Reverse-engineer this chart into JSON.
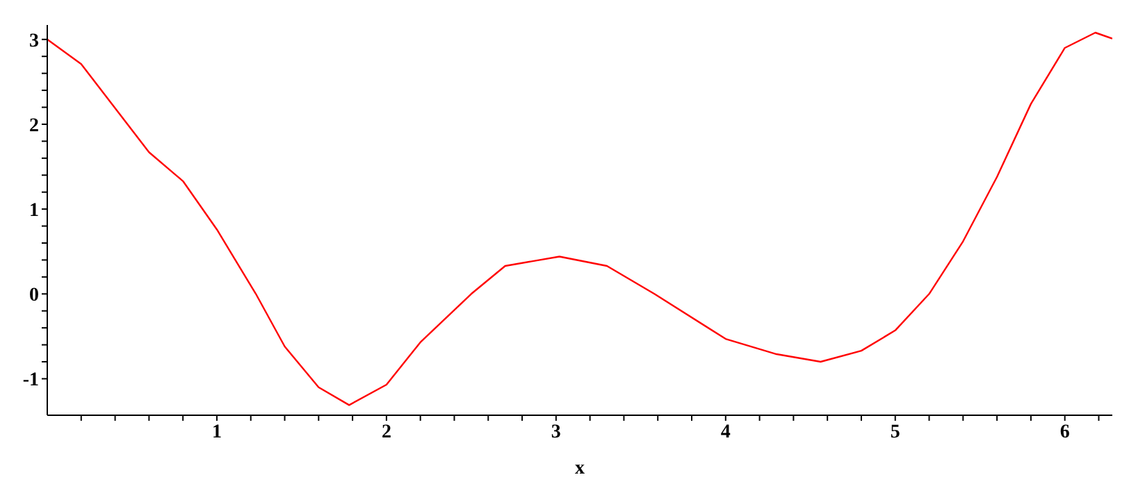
{
  "chart_data": {
    "type": "line",
    "xlabel": "x",
    "x": [
      0,
      0.2,
      0.4,
      0.6,
      0.8,
      1.0,
      1.1,
      1.23,
      1.4,
      1.6,
      1.78,
      2.0,
      2.2,
      2.5,
      2.7,
      3.02,
      3.3,
      3.58,
      4.0,
      4.3,
      4.56,
      4.8,
      5.0,
      5.2,
      5.4,
      5.6,
      5.8,
      6.0,
      6.18,
      6.28
    ],
    "series": [
      {
        "color": "#ff0000",
        "values": [
          3.0,
          2.71,
          2.19,
          1.67,
          1.33,
          0.76,
          0.43,
          0,
          -0.62,
          -1.1,
          -1.31,
          -1.07,
          -0.57,
          0,
          0.33,
          0.44,
          0.33,
          0,
          -0.53,
          -0.71,
          -0.8,
          -0.67,
          -0.43,
          0,
          0.62,
          1.38,
          2.24,
          2.9,
          3.08,
          3.01
        ]
      }
    ],
    "xlim": [
      0,
      6.28
    ],
    "ylim": [
      -1.43,
      3.17
    ],
    "xticks": [
      {
        "value": 0.2,
        "label": null
      },
      {
        "value": 0.4,
        "label": null
      },
      {
        "value": 0.6,
        "label": null
      },
      {
        "value": 0.8,
        "label": null
      },
      1,
      {
        "value": 1.2,
        "label": null
      },
      {
        "value": 1.4,
        "label": null
      },
      {
        "value": 1.6,
        "label": null
      },
      {
        "value": 1.8,
        "label": null
      },
      2,
      {
        "value": 2.2,
        "label": null
      },
      {
        "value": 2.4,
        "label": null
      },
      {
        "value": 2.6,
        "label": null
      },
      {
        "value": 2.8,
        "label": null
      },
      3,
      {
        "value": 3.2,
        "label": null
      },
      {
        "value": 3.4,
        "label": null
      },
      {
        "value": 3.6,
        "label": null
      },
      {
        "value": 3.8,
        "label": null
      },
      4,
      {
        "value": 4.2,
        "label": null
      },
      {
        "value": 4.4,
        "label": null
      },
      {
        "value": 4.6,
        "label": null
      },
      {
        "value": 4.8,
        "label": null
      },
      5,
      {
        "value": 5.2,
        "label": null
      },
      {
        "value": 5.4,
        "label": null
      },
      {
        "value": 5.6,
        "label": null
      },
      {
        "value": 5.8,
        "label": null
      },
      6,
      {
        "value": 6.2,
        "label": null
      }
    ],
    "yticks": [
      -1,
      {
        "value": -0.8,
        "label": null
      },
      {
        "value": -0.6,
        "label": null
      },
      {
        "value": -0.4,
        "label": null
      },
      {
        "value": -0.2,
        "label": null
      },
      0,
      {
        "value": 0.2,
        "label": null
      },
      {
        "value": 0.4,
        "label": null
      },
      {
        "value": 0.6,
        "label": null
      },
      {
        "value": 0.8,
        "label": null
      },
      1,
      {
        "value": 1.2,
        "label": null
      },
      {
        "value": 1.4,
        "label": null
      },
      {
        "value": 1.6,
        "label": null
      },
      {
        "value": 1.8,
        "label": null
      },
      2,
      {
        "value": 2.2,
        "label": null
      },
      {
        "value": 2.4,
        "label": null
      },
      {
        "value": 2.6,
        "label": null
      },
      {
        "value": 2.8,
        "label": null
      },
      3
    ],
    "grid": false,
    "legend": false,
    "marker": "none",
    "line_style": "solid"
  }
}
